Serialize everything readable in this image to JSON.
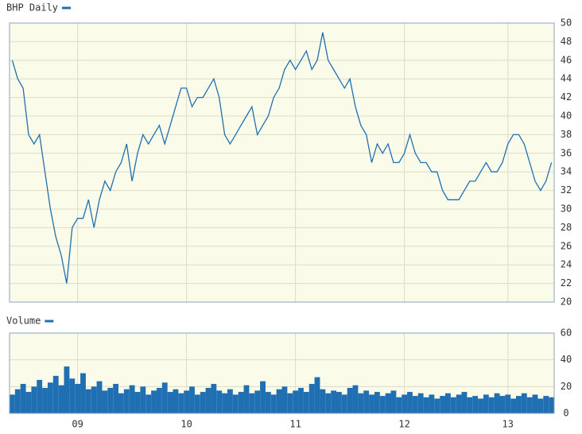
{
  "chart_data": [
    {
      "type": "line",
      "series": [
        {
          "name": "BHP Daily",
          "color": "#1f6fb2",
          "values": [
            46,
            44,
            43,
            38,
            37,
            38,
            34,
            30,
            27,
            25,
            22,
            28,
            29,
            29,
            31,
            28,
            31,
            33,
            32,
            34,
            35,
            37,
            33,
            36,
            38,
            37,
            38,
            39,
            37,
            39,
            41,
            43,
            43,
            41,
            42,
            42,
            43,
            44,
            42,
            38,
            37,
            38,
            39,
            40,
            41,
            38,
            39,
            40,
            42,
            43,
            45,
            46,
            45,
            46,
            47,
            45,
            46,
            49,
            46,
            45,
            44,
            43,
            44,
            41,
            39,
            38,
            35,
            37,
            36,
            37,
            35,
            35,
            36,
            38,
            36,
            35,
            35,
            34,
            34,
            32,
            31,
            31,
            31,
            32,
            33,
            33,
            34,
            35,
            34,
            34,
            35,
            37,
            38,
            38,
            37,
            35,
            33,
            32,
            33,
            35
          ]
        }
      ],
      "ylim": [
        20,
        50
      ],
      "yticks": [
        20,
        22,
        24,
        26,
        28,
        30,
        32,
        34,
        36,
        38,
        40,
        42,
        44,
        46,
        48,
        50
      ],
      "grid": true
    },
    {
      "type": "bar",
      "categories": [
        null,
        null,
        null,
        null,
        null,
        null,
        null,
        null,
        null,
        null,
        null,
        null,
        "09",
        null,
        null,
        null,
        null,
        null,
        null,
        null,
        null,
        null,
        null,
        null,
        null,
        null,
        null,
        null,
        null,
        null,
        null,
        null,
        "10",
        null,
        null,
        null,
        null,
        null,
        null,
        null,
        null,
        null,
        null,
        null,
        null,
        null,
        null,
        null,
        null,
        null,
        null,
        null,
        "11",
        null,
        null,
        null,
        null,
        null,
        null,
        null,
        null,
        null,
        null,
        null,
        null,
        null,
        null,
        null,
        null,
        null,
        null,
        null,
        "12",
        null,
        null,
        null,
        null,
        null,
        null,
        null,
        null,
        null,
        null,
        null,
        null,
        null,
        null,
        null,
        null,
        null,
        null,
        "13",
        null,
        null,
        null,
        null,
        null,
        null,
        null,
        null
      ],
      "series": [
        {
          "name": "Volume",
          "color": "#1f6fb2",
          "values": [
            14,
            18,
            22,
            16,
            20,
            25,
            19,
            23,
            28,
            21,
            35,
            26,
            22,
            30,
            18,
            20,
            24,
            17,
            19,
            22,
            15,
            18,
            21,
            16,
            20,
            14,
            17,
            19,
            23,
            16,
            18,
            15,
            17,
            20,
            14,
            16,
            19,
            22,
            17,
            15,
            18,
            14,
            16,
            21,
            15,
            17,
            24,
            16,
            14,
            18,
            20,
            15,
            17,
            19,
            16,
            22,
            27,
            18,
            15,
            17,
            16,
            14,
            19,
            21,
            15,
            17,
            14,
            16,
            13,
            15,
            17,
            12,
            14,
            16,
            13,
            15,
            12,
            14,
            11,
            13,
            15,
            12,
            14,
            16,
            12,
            13,
            11,
            14,
            12,
            15,
            13,
            14,
            11,
            13,
            15,
            12,
            14,
            11,
            13,
            12
          ]
        }
      ],
      "ylim": [
        0,
        60
      ],
      "yticks": [
        0,
        20,
        40,
        60
      ],
      "grid": true
    }
  ]
}
